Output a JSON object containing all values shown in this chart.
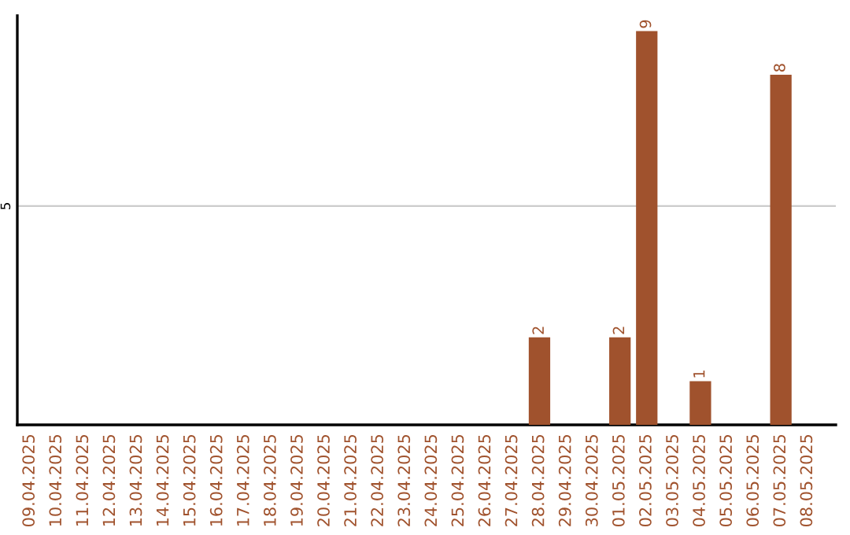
{
  "chart_data": {
    "type": "bar",
    "categories": [
      "09.04.2025",
      "10.04.2025",
      "11.04.2025",
      "12.04.2025",
      "13.04.2025",
      "14.04.2025",
      "15.04.2025",
      "16.04.2025",
      "17.04.2025",
      "18.04.2025",
      "19.04.2025",
      "20.04.2025",
      "21.04.2025",
      "22.04.2025",
      "23.04.2025",
      "24.04.2025",
      "25.04.2025",
      "26.04.2025",
      "27.04.2025",
      "28.04.2025",
      "29.04.2025",
      "30.04.2025",
      "01.05.2025",
      "02.05.2025",
      "03.05.2025",
      "04.05.2025",
      "05.05.2025",
      "06.05.2025",
      "07.05.2025",
      "08.05.2025"
    ],
    "values": [
      null,
      null,
      null,
      null,
      null,
      null,
      null,
      null,
      null,
      null,
      null,
      null,
      null,
      null,
      null,
      null,
      null,
      null,
      null,
      2,
      null,
      null,
      2,
      9,
      null,
      1,
      null,
      null,
      8,
      null
    ],
    "data_labels": true,
    "color": "#a0522d",
    "ylim": [
      0,
      9.35
    ],
    "yticks": [
      5
    ],
    "grid": "y"
  }
}
